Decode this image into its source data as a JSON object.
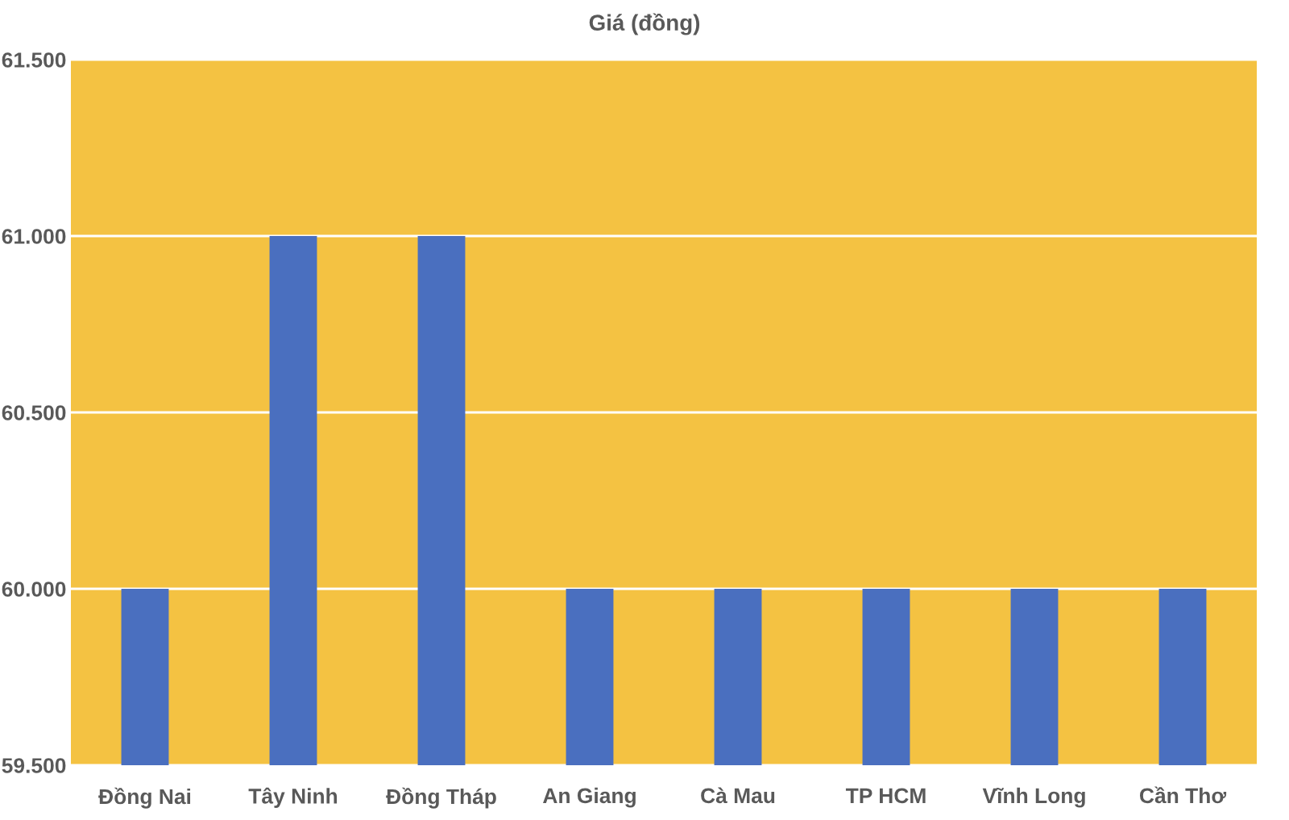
{
  "chart_data": {
    "type": "bar",
    "title": "Giá (đồng)",
    "categories": [
      "Đồng Nai",
      "Tây Ninh",
      "Đồng Tháp",
      "An Giang",
      "Cà Mau",
      "TP HCM",
      "Vĩnh Long",
      "Cần Thơ"
    ],
    "values": [
      60000,
      61000,
      61000,
      60000,
      60000,
      60000,
      60000,
      60000
    ],
    "color": "#4a6fbf",
    "ylim": [
      59500,
      61500
    ],
    "yticks": [
      {
        "value": 59500,
        "label": "59.500"
      },
      {
        "value": 60000,
        "label": "60.000"
      },
      {
        "value": 60500,
        "label": "60.500"
      },
      {
        "value": 61000,
        "label": "61.000"
      },
      {
        "value": 61500,
        "label": "61.500"
      }
    ],
    "grid": "y",
    "legend": false
  }
}
